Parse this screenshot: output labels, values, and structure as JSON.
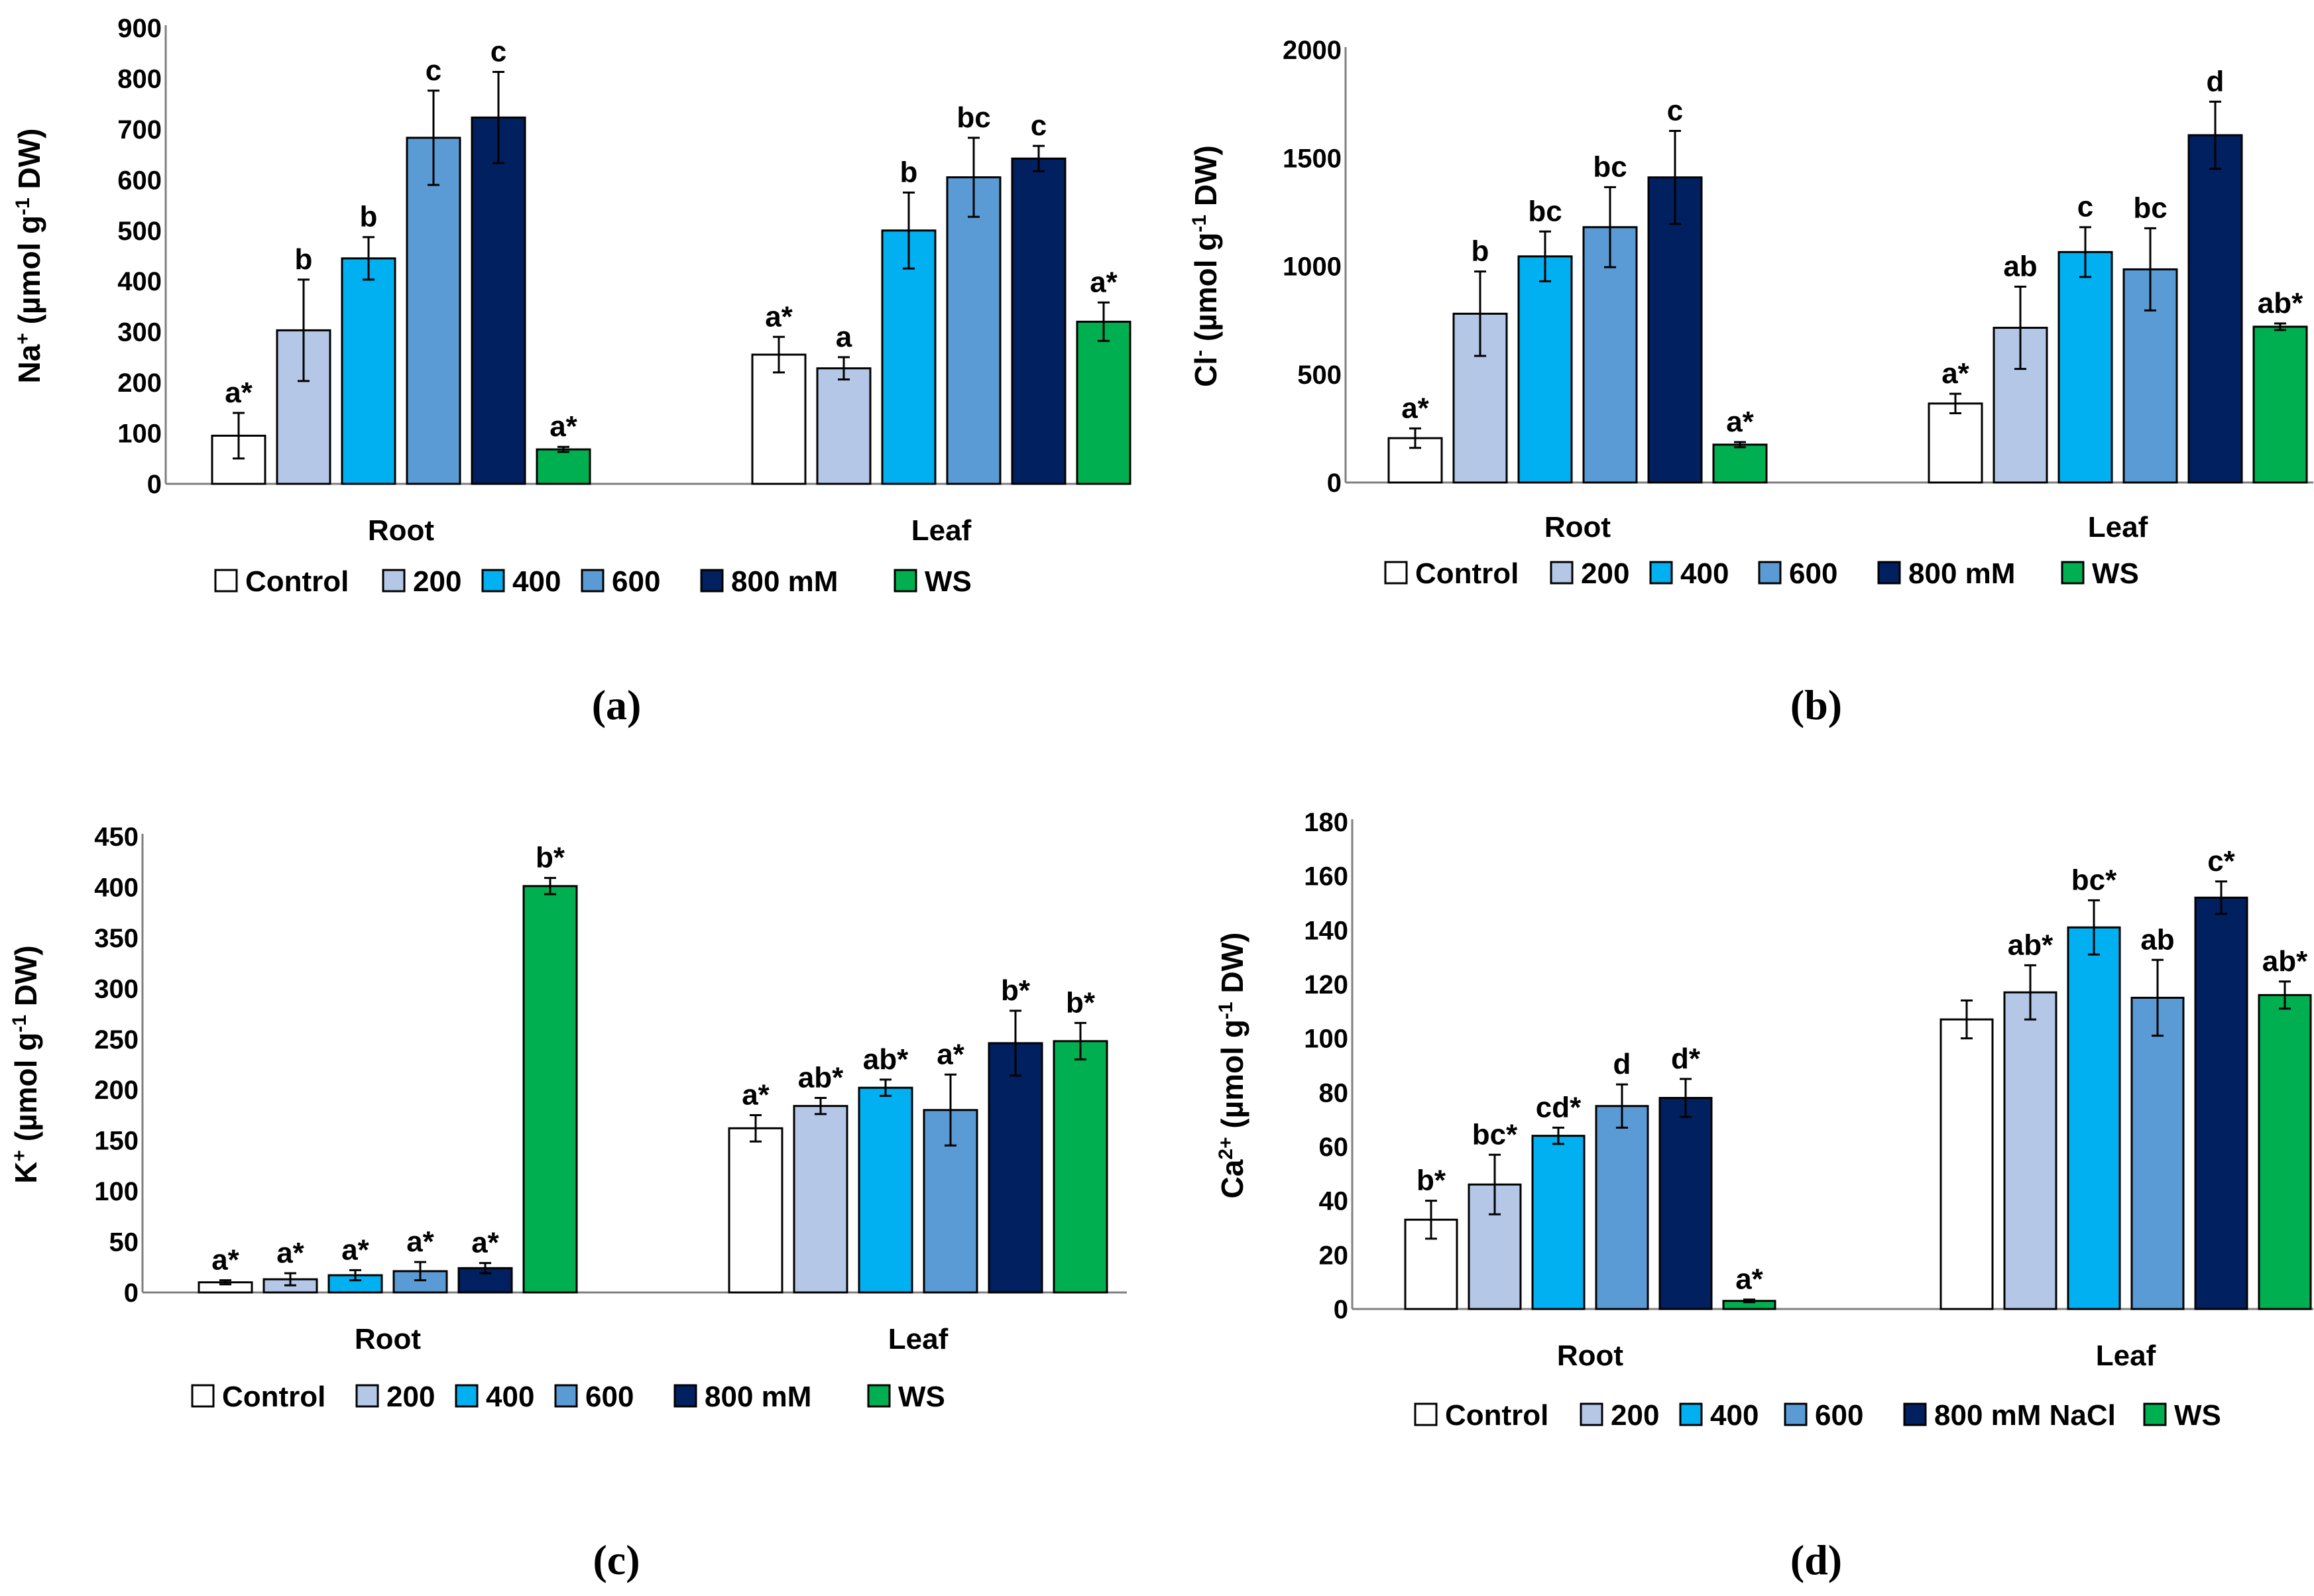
{
  "chart_data": [
    {
      "type": "bar",
      "panel_label": "(a)",
      "ylabel": "Na+ (µmol g-1 DW)",
      "ylabel_parts": [
        {
          "t": "Na"
        },
        {
          "t": "+",
          "sup": true
        },
        {
          "t": " (µmol g"
        },
        {
          "t": "-1",
          "sup": true
        },
        {
          "t": " DW)"
        }
      ],
      "ylim": [
        0,
        900
      ],
      "yticks": [
        0,
        100,
        200,
        300,
        400,
        500,
        600,
        700,
        800,
        900
      ],
      "categories": [
        "Root",
        "Leaf"
      ],
      "legend": [
        "Control",
        "200",
        "400",
        "600",
        "800 mM",
        "WS"
      ],
      "series": [
        {
          "name": "Control",
          "values": [
            95,
            255
          ],
          "errors": [
            45,
            35
          ],
          "labels": [
            "a*",
            "a*"
          ]
        },
        {
          "name": "200",
          "values": [
            303,
            228
          ],
          "errors": [
            100,
            22
          ],
          "labels": [
            "b",
            "a"
          ]
        },
        {
          "name": "400",
          "values": [
            445,
            500
          ],
          "errors": [
            42,
            75
          ],
          "labels": [
            "b",
            "b"
          ]
        },
        {
          "name": "600",
          "values": [
            683,
            605
          ],
          "errors": [
            93,
            78
          ],
          "labels": [
            "c",
            "bc"
          ]
        },
        {
          "name": "800 mM",
          "values": [
            723,
            642
          ],
          "errors": [
            90,
            25
          ],
          "labels": [
            "c",
            "c"
          ]
        },
        {
          "name": "WS",
          "values": [
            68,
            320
          ],
          "errors": [
            5,
            38
          ],
          "labels": [
            "a*",
            "a*"
          ]
        }
      ]
    },
    {
      "type": "bar",
      "panel_label": "(b)",
      "ylabel": "Cl- (µmol g-1 DW)",
      "ylabel_parts": [
        {
          "t": "Cl"
        },
        {
          "t": "-",
          "sup": true
        },
        {
          "t": " (µmol g"
        },
        {
          "t": "-1",
          "sup": true
        },
        {
          "t": " DW)"
        }
      ],
      "ylim": [
        0,
        2000
      ],
      "yticks": [
        0,
        500,
        1000,
        1500,
        2000
      ],
      "categories": [
        "Root",
        "Leaf"
      ],
      "legend": [
        "Control",
        "200",
        "400",
        "600",
        "800 mM",
        "WS"
      ],
      "series": [
        {
          "name": "Control",
          "values": [
            205,
            365
          ],
          "errors": [
            45,
            45
          ],
          "labels": [
            "a*",
            "a*"
          ]
        },
        {
          "name": "200",
          "values": [
            780,
            715
          ],
          "errors": [
            195,
            190
          ],
          "labels": [
            "b",
            "ab"
          ]
        },
        {
          "name": "400",
          "values": [
            1045,
            1065
          ],
          "errors": [
            115,
            115
          ],
          "labels": [
            "bc",
            "c"
          ]
        },
        {
          "name": "600",
          "values": [
            1180,
            985
          ],
          "errors": [
            185,
            190
          ],
          "labels": [
            "bc",
            "bc"
          ]
        },
        {
          "name": "800 mM",
          "values": [
            1410,
            1605
          ],
          "errors": [
            215,
            155
          ],
          "labels": [
            "c",
            "d"
          ]
        },
        {
          "name": "WS",
          "values": [
            175,
            720
          ],
          "errors": [
            12,
            15
          ],
          "labels": [
            "a*",
            "ab*"
          ]
        }
      ]
    },
    {
      "type": "bar",
      "panel_label": "(c)",
      "ylabel": "K+ (µmol g-1 DW)",
      "ylabel_parts": [
        {
          "t": "K"
        },
        {
          "t": "+",
          "sup": true
        },
        {
          "t": " (µmol g"
        },
        {
          "t": "-1",
          "sup": true
        },
        {
          "t": " DW)"
        }
      ],
      "ylim": [
        0,
        450
      ],
      "yticks": [
        0,
        50,
        100,
        150,
        200,
        250,
        300,
        350,
        400,
        450
      ],
      "categories": [
        "Root",
        "Leaf"
      ],
      "legend": [
        "Control",
        "200",
        "400",
        "600",
        "800 mM",
        "WS"
      ],
      "series": [
        {
          "name": "Control",
          "values": [
            10,
            162
          ],
          "errors": [
            2,
            13
          ],
          "labels": [
            "a*",
            "a*"
          ]
        },
        {
          "name": "200",
          "values": [
            13,
            184
          ],
          "errors": [
            6,
            8
          ],
          "labels": [
            "a*",
            "ab*"
          ]
        },
        {
          "name": "400",
          "values": [
            17,
            202
          ],
          "errors": [
            5,
            8
          ],
          "labels": [
            "a*",
            "ab*"
          ]
        },
        {
          "name": "600",
          "values": [
            21,
            180
          ],
          "errors": [
            9,
            35
          ],
          "labels": [
            "a*",
            "a*"
          ]
        },
        {
          "name": "800 mM",
          "values": [
            24,
            246
          ],
          "errors": [
            5,
            32
          ],
          "labels": [
            "a*",
            "b*"
          ]
        },
        {
          "name": "WS",
          "values": [
            401,
            248
          ],
          "errors": [
            8,
            18
          ],
          "labels": [
            "b*",
            "b*"
          ]
        }
      ]
    },
    {
      "type": "bar",
      "panel_label": "(d)",
      "ylabel": "Ca2+ (µmol g-1 DW)",
      "ylabel_parts": [
        {
          "t": "Ca"
        },
        {
          "t": "2+",
          "sup": true
        },
        {
          "t": " (µmol g"
        },
        {
          "t": "-1",
          "sup": true
        },
        {
          "t": " DW)"
        }
      ],
      "ylim": [
        0,
        180
      ],
      "yticks": [
        0,
        20,
        40,
        60,
        80,
        100,
        120,
        140,
        160,
        180
      ],
      "categories": [
        "Root",
        "Leaf"
      ],
      "legend": [
        "Control",
        "200",
        "400",
        "600",
        "800 mM NaCl",
        "WS"
      ],
      "series": [
        {
          "name": "Control",
          "values": [
            33,
            107
          ],
          "errors": [
            7,
            7
          ],
          "labels": [
            "b*",
            ""
          ]
        },
        {
          "name": "200",
          "values": [
            46,
            117
          ],
          "errors": [
            11,
            10
          ],
          "labels": [
            "bc*",
            "ab*"
          ]
        },
        {
          "name": "400",
          "values": [
            64,
            141
          ],
          "errors": [
            3,
            10
          ],
          "labels": [
            "cd*",
            "bc*"
          ]
        },
        {
          "name": "600",
          "values": [
            75,
            115
          ],
          "errors": [
            8,
            14
          ],
          "labels": [
            "d",
            "ab"
          ]
        },
        {
          "name": "800 mM NaCl",
          "values": [
            78,
            152
          ],
          "errors": [
            7,
            6
          ],
          "labels": [
            "d*",
            "c*"
          ]
        },
        {
          "name": "WS",
          "values": [
            3,
            116
          ],
          "errors": [
            0.5,
            5
          ],
          "labels": [
            "a*",
            "ab*"
          ]
        }
      ]
    }
  ],
  "colors": {
    "Control": "#ffffff",
    "200": "#b4c7e7",
    "400": "#00b0f0",
    "600": "#5b9bd5",
    "800": "#002060",
    "WS": "#00b050",
    "edge": "#000000",
    "axis": "#7f7f7f"
  }
}
